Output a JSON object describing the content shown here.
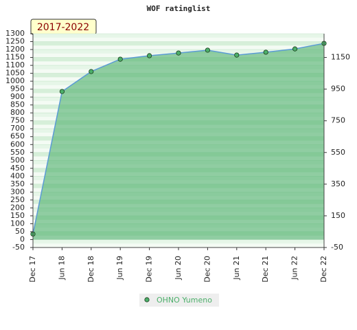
{
  "chart_data": {
    "type": "line",
    "title": "WOF ratinglist",
    "annotation": "2017-2022",
    "categories": [
      "Dec 17",
      "Jun 18",
      "Dec 18",
      "Jun 19",
      "Dec 19",
      "Jun 20",
      "Dec 20",
      "Jun 21",
      "Dec 21",
      "Jun 22",
      "Dec 22"
    ],
    "series": [
      {
        "name": "OHNO Yumeno",
        "color": "#4caf6a",
        "line_color": "#5b9bd5",
        "values": [
          35,
          935,
          1061,
          1139,
          1161,
          1178,
          1196,
          1165,
          1183,
          1204,
          1239
        ]
      }
    ],
    "ylim": [
      -50,
      1300
    ],
    "yticks": [
      -50,
      0,
      50,
      100,
      150,
      200,
      250,
      300,
      350,
      400,
      450,
      500,
      550,
      600,
      650,
      700,
      750,
      800,
      850,
      900,
      950,
      1000,
      1050,
      1100,
      1150,
      1200,
      1250,
      1300
    ],
    "y2lim": [
      -50,
      1300
    ],
    "y2ticks": [
      -50,
      150,
      350,
      550,
      750,
      950,
      1150
    ],
    "grid": true,
    "legend": "bottom"
  }
}
